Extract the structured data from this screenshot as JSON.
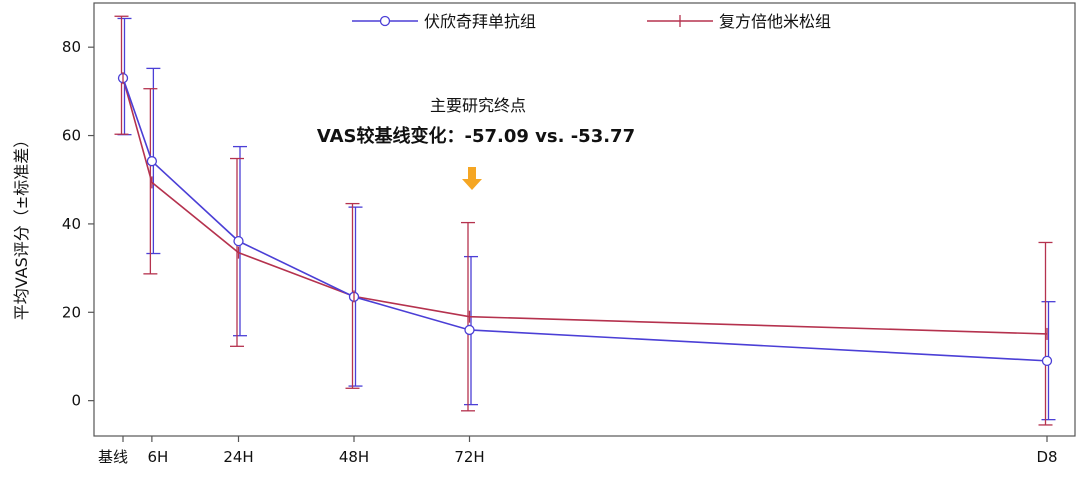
{
  "chart_data": {
    "type": "line",
    "title": "",
    "xlabel": "",
    "ylabel": "平均VAS评分（±标准差）",
    "x": [
      0,
      6,
      24,
      48,
      72,
      192
    ],
    "x_tick_labels": [
      "基线",
      "6H",
      "24H",
      "48H",
      "72H",
      "D8"
    ],
    "ylim": [
      -8,
      90
    ],
    "y_ticks": [
      0,
      20,
      40,
      60,
      80
    ],
    "grid": false,
    "legend_position": "top",
    "annotation": {
      "line1": "主要研究终点",
      "line2": "VAS较基线变化：-57.09 vs. -53.77",
      "arrow_color": "#f5a623"
    },
    "series": [
      {
        "name": "伏欣奇拜单抗组",
        "color": "#4b3fd6",
        "marker": "circle",
        "values": [
          73,
          54.2,
          36.1,
          23.5,
          16.0,
          9.0
        ],
        "error_high": [
          86.5,
          75.2,
          57.5,
          43.8,
          32.6,
          22.4
        ],
        "error_low": [
          60.2,
          33.3,
          14.7,
          3.3,
          -0.9,
          -4.3
        ]
      },
      {
        "name": "复方倍他米松组",
        "color": "#b5324e",
        "marker": "plus",
        "values": [
          73,
          49.4,
          33.5,
          23.6,
          19.0,
          15.1
        ],
        "error_high": [
          87.0,
          70.6,
          54.8,
          44.6,
          40.3,
          35.8
        ],
        "error_low": [
          60.3,
          28.7,
          12.3,
          2.8,
          -2.3,
          -5.5
        ]
      }
    ]
  }
}
